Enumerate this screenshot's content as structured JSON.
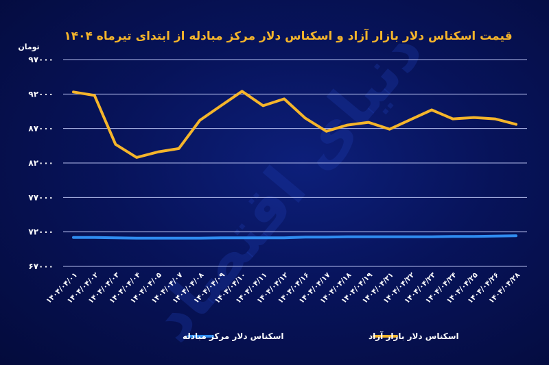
{
  "chart_data": {
    "type": "line",
    "title": "قیمت اسکناس دلار بازار آزاد و اسکناس دلار مرکز مبادله از ابتدای تیرماه ۱۴۰۴",
    "unit_label": "تومان",
    "watermark": "دنیای اقتصاد",
    "ylim": [
      67000,
      97000
    ],
    "y_ticks": [
      97000,
      92000,
      87000,
      82000,
      77000,
      72000,
      67000
    ],
    "y_tick_labels": [
      "۹۷۰۰۰",
      "۹۲۰۰۰",
      "۸۷۰۰۰",
      "۸۲۰۰۰",
      "۷۷۰۰۰",
      "۷۲۰۰۰",
      "۶۷۰۰۰"
    ],
    "grid": true,
    "legend_position": "bottom",
    "categories": [
      "۱۴۰۴/۰۴/۰۱",
      "۱۴۰۴/۰۴/۰۲",
      "۱۴۰۴/۰۴/۰۳",
      "۱۴۰۴/۰۴/۰۴",
      "۱۴۰۴/۰۴/۰۵",
      "۱۴۰۴/۰۴/۰۷",
      "۱۴۰۴/۰۴/۰۸",
      "۱۴۰۴/۰۴/۰۹",
      "۱۴۰۴/۰۴/۱۰",
      "۱۴۰۴/۰۴/۱۱",
      "۱۴۰۴/۰۴/۱۲",
      "۱۴۰۴/۰۴/۱۶",
      "۱۴۰۴/۰۴/۱۷",
      "۱۴۰۴/۰۴/۱۸",
      "۱۴۰۴/۰۴/۱۹",
      "۱۴۰۴/۰۴/۲۱",
      "۱۴۰۴/۰۴/۲۲",
      "۱۴۰۴/۰۴/۲۳",
      "۱۴۰۴/۰۴/۲۴",
      "۱۴۰۴/۰۴/۲۵",
      "۱۴۰۴/۰۴/۲۶",
      "۱۴۰۴/۰۴/۲۸"
    ],
    "series": [
      {
        "name": "اسکناس دلار بازار آزاد",
        "color": "#f5b52b",
        "values": [
          92300,
          91800,
          84700,
          82800,
          83600,
          84100,
          88200,
          90300,
          92400,
          90300,
          91300,
          88500,
          86600,
          87500,
          87900,
          86900,
          88300,
          89700,
          88400,
          88600,
          88400,
          87600
        ]
      },
      {
        "name": "اسکناس دلار مرکز مبادله",
        "color": "#2f8cf0",
        "values": [
          71200,
          71200,
          71150,
          71100,
          71100,
          71100,
          71100,
          71150,
          71150,
          71150,
          71150,
          71250,
          71250,
          71300,
          71300,
          71300,
          71300,
          71300,
          71350,
          71350,
          71400,
          71450
        ]
      }
    ]
  }
}
